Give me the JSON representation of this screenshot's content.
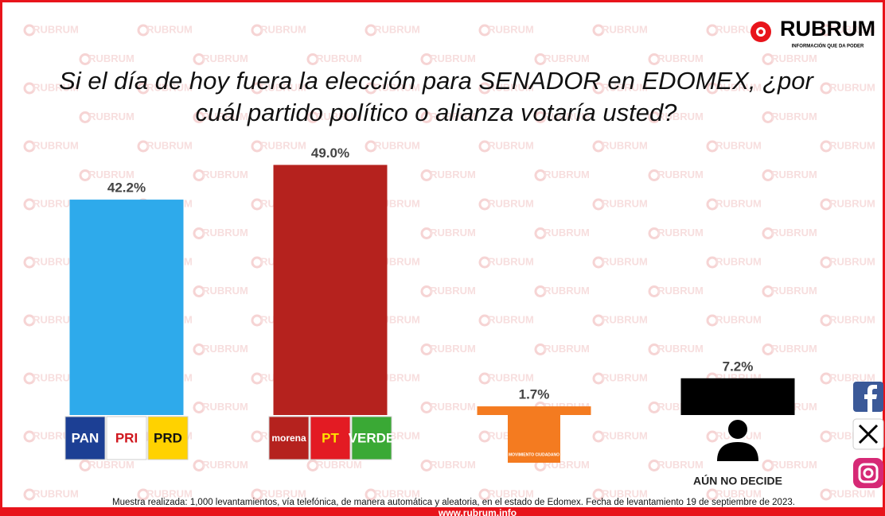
{
  "chart_data": {
    "type": "bar",
    "title": [
      "Si el día de hoy fuera la elección para SENADOR en EDOMEX, ¿por",
      "cuál partido político o alianza votaría usted?"
    ],
    "categories": [
      null,
      null,
      null,
      "AÚN NO DECIDE"
    ],
    "logos": [
      [
        "PAN",
        "PRI",
        "PRD"
      ],
      [
        "morena",
        "PT",
        "VERDE"
      ],
      [
        "MOVIMIENTO CIUDADANO"
      ],
      []
    ],
    "values": [
      42.2,
      49.0,
      1.7,
      7.2
    ],
    "value_labels": [
      "42.2%",
      "49.0%",
      "1.7%",
      "7.2%"
    ],
    "colors": [
      "#2eaaeb",
      "#b5221e",
      "#f47b20",
      "#000000"
    ],
    "ylim": [
      0,
      50
    ]
  },
  "brand": {
    "name": "RUBRUM",
    "tagline": "INFORMACIÓN QUE DA PODER"
  },
  "watermark": "RUBRUM",
  "footnote": "Muestra realizada: 1,000 levantamientos, vía telefónica, de manera automática y aleatoria, en el estado de Edomex. Fecha de levantamiento 19 de septiembre de 2023.",
  "website": "www.rubrum.info"
}
